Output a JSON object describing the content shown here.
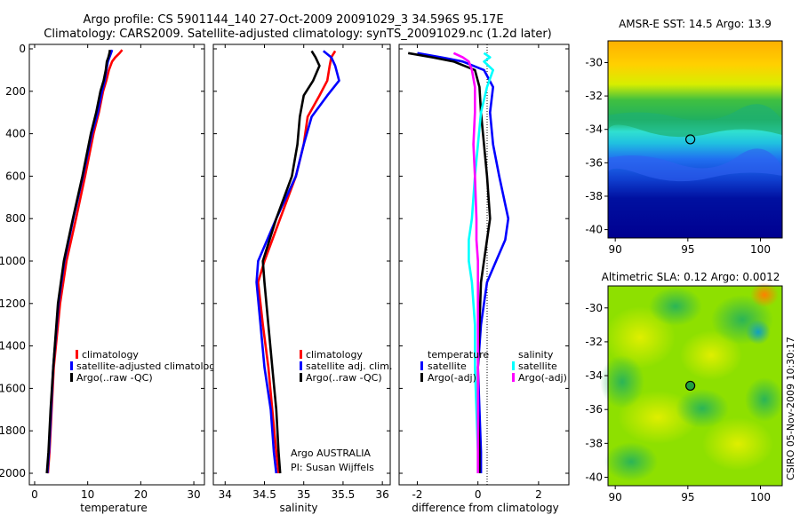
{
  "header": {
    "line1": "Argo profile: CS 5901144_140 27-Oct-2009 20091029_3 34.596S 95.17E",
    "line2": "Climatology: CARS2009. Satellite-adjusted climatology: synTS_20091029.nc (1.2d later)"
  },
  "side_text": "CSIRO 05-Nov-2009 10:30:17",
  "colors": {
    "climatology": "#ff0000",
    "satellite": "#0000ff",
    "argo": "#000000",
    "sal_satellite": "#00ffff",
    "sal_argo": "#ff00ff"
  },
  "chart_data": [
    {
      "type": "line",
      "title": "",
      "xlabel": "temperature",
      "ylabel": "",
      "xlim": [
        -1,
        32
      ],
      "ylim": [
        0,
        2060
      ],
      "xticks": [
        0,
        10,
        20,
        30
      ],
      "yticks": [
        0,
        200,
        400,
        600,
        800,
        1000,
        1200,
        1400,
        1600,
        1800,
        2000
      ],
      "y_reversed": true,
      "legend": [
        "climatology",
        "satellite-adjusted climatology",
        "Argo(..raw -QC)"
      ],
      "series": [
        {
          "name": "climatology",
          "color": "#ff0000",
          "x": [
            16.5,
            16.0,
            15.2,
            14.6,
            14.0,
            13.5,
            12.9,
            12.1,
            11.1,
            9.5,
            7.8,
            6.0,
            4.8,
            3.6,
            3.2,
            2.8,
            2.5
          ],
          "y": [
            5,
            20,
            40,
            60,
            100,
            150,
            200,
            300,
            400,
            600,
            800,
            1000,
            1200,
            1500,
            1700,
            1900,
            2000
          ]
        },
        {
          "name": "satellite-adjusted climatology",
          "color": "#0000ff",
          "x": [
            14.6,
            14.4,
            14.1,
            13.8,
            13.5,
            13.2,
            12.7,
            11.9,
            10.8,
            9.1,
            7.3,
            5.6,
            4.5,
            3.5,
            3.1,
            2.7,
            2.4
          ],
          "y": [
            5,
            20,
            40,
            60,
            100,
            150,
            200,
            300,
            400,
            600,
            800,
            1000,
            1200,
            1500,
            1700,
            1900,
            2000
          ]
        },
        {
          "name": "Argo(..raw -QC)",
          "color": "#000000",
          "x": [
            14.2,
            14.1,
            13.9,
            13.6,
            13.4,
            13.0,
            12.4,
            11.6,
            10.6,
            9.0,
            7.2,
            5.5,
            4.4,
            3.5,
            3.0,
            2.6,
            2.3
          ],
          "y": [
            5,
            20,
            40,
            60,
            100,
            150,
            200,
            300,
            400,
            600,
            800,
            1000,
            1200,
            1500,
            1700,
            1900,
            2000
          ]
        }
      ]
    },
    {
      "type": "line",
      "title": "",
      "xlabel": "salinity",
      "ylabel": "",
      "xlim": [
        33.85,
        36.1
      ],
      "ylim": [
        0,
        2060
      ],
      "xticks": [
        34,
        34.5,
        35,
        35.5,
        36
      ],
      "yticks": [
        0,
        200,
        400,
        600,
        800,
        1000,
        1200,
        1400,
        1600,
        1800,
        2000
      ],
      "y_reversed": true,
      "legend": [
        "climatology",
        "satellite adj. clim.",
        "Argo(..raw -QC)"
      ],
      "annotation": [
        "Argo AUSTRALIA",
        "PI: Susan Wijffels"
      ],
      "series": [
        {
          "name": "climatology",
          "color": "#ff0000",
          "x": [
            35.4,
            35.35,
            35.33,
            35.3,
            35.2,
            35.05,
            35.0,
            34.9,
            34.7,
            34.5,
            34.42,
            34.48,
            34.55,
            34.6,
            34.65,
            34.68
          ],
          "y": [
            10,
            40,
            80,
            150,
            220,
            320,
            450,
            600,
            800,
            1000,
            1100,
            1300,
            1500,
            1700,
            1900,
            2000
          ]
        },
        {
          "name": "satellite adj. clim.",
          "color": "#0000ff",
          "x": [
            35.25,
            35.35,
            35.4,
            35.45,
            35.3,
            35.1,
            35.0,
            34.9,
            34.65,
            34.42,
            34.4,
            34.45,
            34.5,
            34.58,
            34.62,
            34.65
          ],
          "y": [
            10,
            40,
            80,
            150,
            220,
            320,
            450,
            600,
            800,
            1000,
            1100,
            1300,
            1500,
            1700,
            1900,
            2000
          ]
        },
        {
          "name": "Argo(..raw -QC)",
          "color": "#000000",
          "x": [
            35.1,
            35.15,
            35.2,
            35.12,
            35.0,
            34.95,
            34.92,
            34.85,
            34.65,
            34.48,
            34.5,
            34.55,
            34.6,
            34.65,
            34.68,
            34.7
          ],
          "y": [
            10,
            40,
            80,
            150,
            220,
            320,
            450,
            600,
            800,
            1000,
            1100,
            1300,
            1500,
            1700,
            1900,
            2000
          ]
        }
      ]
    },
    {
      "type": "line",
      "title": "",
      "xlabel": "difference from climatology",
      "ylabel": "",
      "xlim": [
        -2.6,
        3.0
      ],
      "ylim": [
        0,
        2060
      ],
      "xticks": [
        -2,
        0,
        2
      ],
      "yticks": [
        0,
        200,
        400,
        600,
        800,
        1000,
        1200,
        1400,
        1600,
        1800,
        2000
      ],
      "y_reversed": true,
      "legend_headers": [
        "temperature",
        "salinity"
      ],
      "legend": [
        "satellite",
        "Argo(-adj)",
        "satellite",
        "Argo(-adj)"
      ],
      "series": [
        {
          "name": "temperature satellite",
          "color": "#0000ff",
          "x": [
            -2.0,
            -1.2,
            -0.5,
            0.2,
            0.5,
            0.4,
            0.5,
            0.7,
            1.0,
            0.9,
            0.6,
            0.3,
            0.1,
            0.0,
            0.05,
            0.1,
            0.1
          ],
          "y": [
            20,
            40,
            60,
            100,
            180,
            300,
            450,
            600,
            800,
            900,
            1000,
            1100,
            1300,
            1500,
            1700,
            1900,
            2000
          ]
        },
        {
          "name": "temperature Argo(-adj)",
          "color": "#000000",
          "x": [
            -2.3,
            -1.5,
            -0.8,
            -0.1,
            0.05,
            0.1,
            0.2,
            0.3,
            0.4,
            0.3,
            0.2,
            0.1,
            0.05,
            0.0,
            0.0,
            0.05,
            0.05
          ],
          "y": [
            20,
            40,
            60,
            100,
            180,
            300,
            450,
            600,
            800,
            900,
            1000,
            1100,
            1300,
            1500,
            1700,
            1900,
            2000
          ]
        },
        {
          "name": "salinity satellite",
          "color": "#00ffff",
          "x": [
            0.2,
            0.4,
            0.2,
            0.5,
            0.3,
            0.1,
            0.0,
            -0.1,
            -0.2,
            -0.3,
            -0.3,
            -0.2,
            -0.1,
            -0.1,
            -0.05,
            0.0,
            0.0
          ],
          "y": [
            20,
            40,
            60,
            100,
            180,
            300,
            450,
            600,
            800,
            900,
            1000,
            1100,
            1300,
            1500,
            1700,
            1900,
            2000
          ]
        },
        {
          "name": "salinity Argo(-adj)",
          "color": "#ff00ff",
          "x": [
            -0.8,
            -0.5,
            -0.3,
            -0.2,
            -0.1,
            -0.1,
            -0.15,
            -0.1,
            -0.05,
            -0.05,
            0.0,
            0.0,
            0.0,
            0.0,
            0.0,
            0.0,
            0.0
          ],
          "y": [
            20,
            40,
            60,
            100,
            180,
            300,
            450,
            600,
            800,
            900,
            1000,
            1100,
            1300,
            1500,
            1700,
            1900,
            2000
          ]
        }
      ]
    },
    {
      "type": "heatmap",
      "title": "AMSR-E SST: 14.5 Argo: 13.9",
      "xlim": [
        89.5,
        101.5
      ],
      "ylim": [
        -40.5,
        -28.7
      ],
      "xticks": [
        90,
        95,
        100
      ],
      "yticks": [
        -30,
        -32,
        -34,
        -36,
        -38,
        -40
      ],
      "marker": {
        "lon": 95.17,
        "lat": -34.596
      }
    },
    {
      "type": "heatmap",
      "title": "Altimetric SLA: 0.12 Argo: 0.0012",
      "xlim": [
        89.5,
        101.5
      ],
      "ylim": [
        -40.5,
        -28.7
      ],
      "xticks": [
        90,
        95,
        100
      ],
      "yticks": [
        -30,
        -32,
        -34,
        -36,
        -38,
        -40
      ],
      "marker": {
        "lon": 95.17,
        "lat": -34.596
      }
    }
  ]
}
